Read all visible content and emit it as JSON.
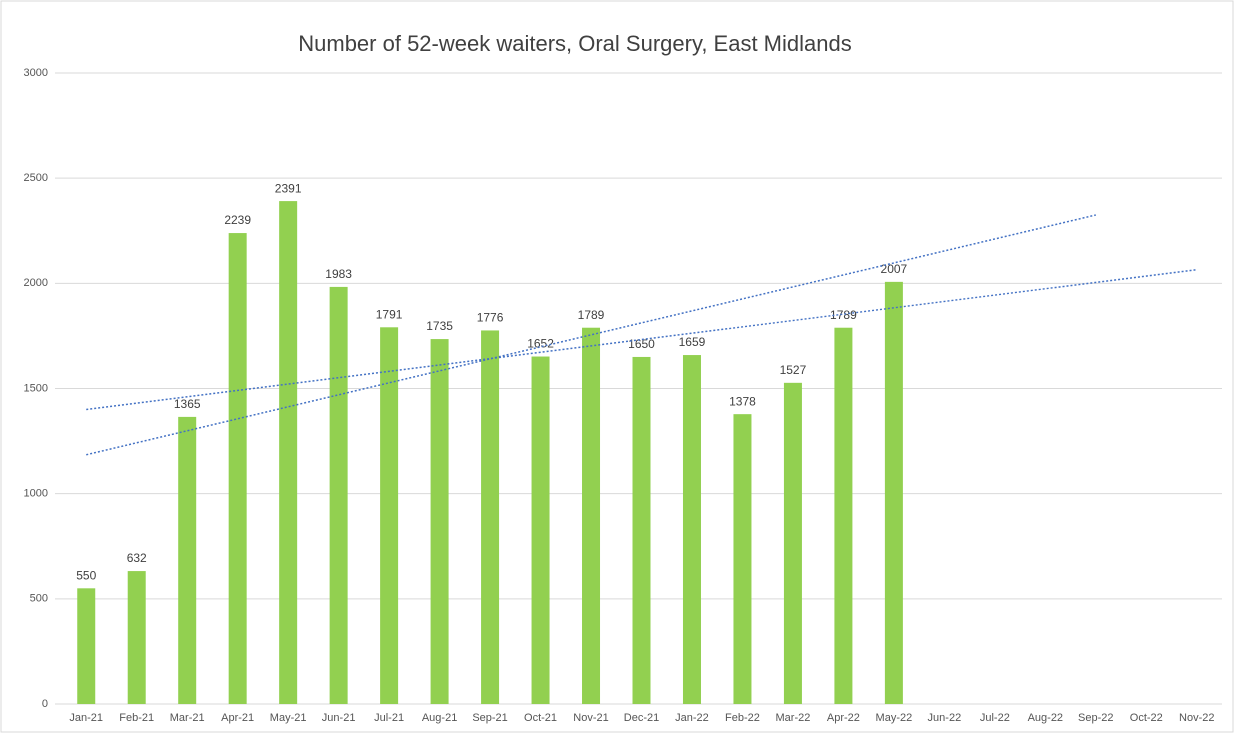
{
  "chart_data": {
    "type": "bar",
    "title": "Number of 52-week waiters, Oral Surgery, East Midlands",
    "categories": [
      "Jan-21",
      "Feb-21",
      "Mar-21",
      "Apr-21",
      "May-21",
      "Jun-21",
      "Jul-21",
      "Aug-21",
      "Sep-21",
      "Oct-21",
      "Nov-21",
      "Dec-21",
      "Jan-22",
      "Feb-22",
      "Mar-22",
      "Apr-22",
      "May-22",
      "Jun-22",
      "Jul-22",
      "Aug-22",
      "Sep-22",
      "Oct-22",
      "Nov-22"
    ],
    "values": [
      550,
      632,
      1365,
      2239,
      2391,
      1983,
      1791,
      1735,
      1776,
      1652,
      1789,
      1650,
      1659,
      1378,
      1527,
      1789,
      2007,
      null,
      null,
      null,
      null,
      null,
      null
    ],
    "color": "#92d050",
    "ylim": [
      0,
      3000
    ],
    "yticks": [
      0,
      500,
      1000,
      1500,
      2000,
      2500,
      3000
    ],
    "grid": true,
    "trendlines": [
      {
        "color": "#4472c4",
        "x": [
          "Jan-21",
          "Nov-22"
        ],
        "values": [
          1400,
          2065
        ]
      },
      {
        "color": "#4472c4",
        "x": [
          "Jan-21",
          "Sep-22"
        ],
        "values": [
          1185,
          2325
        ]
      }
    ]
  }
}
